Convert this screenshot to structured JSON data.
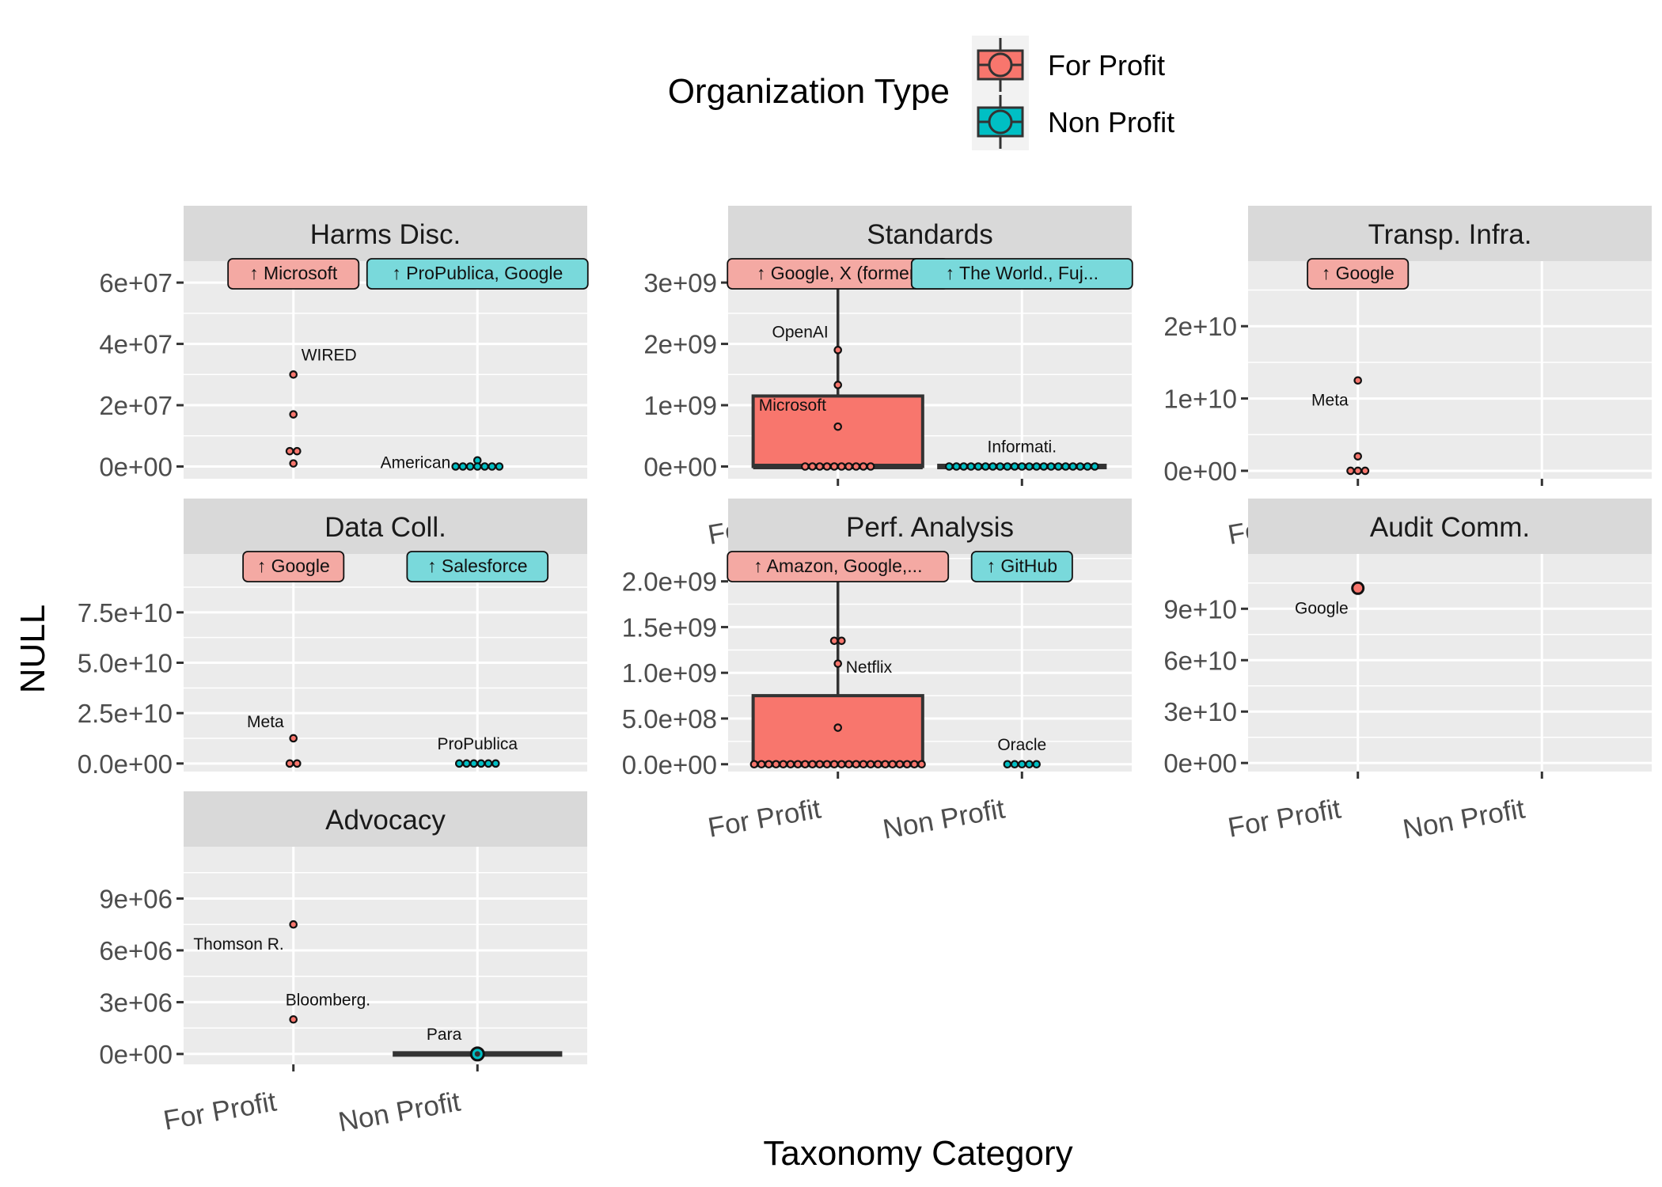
{
  "chart_data": {
    "type": "box",
    "ylabel": "NULL",
    "xlabel": "Taxonomy Category",
    "legend": {
      "title": "Organization Type",
      "position": "top",
      "entries": [
        {
          "name": "For Profit",
          "color": "#F8766D"
        },
        {
          "name": "Non Profit",
          "color": "#00BFC4"
        }
      ]
    },
    "categories": [
      "For Profit",
      "Non Profit"
    ],
    "panels": [
      {
        "title": "Harms Disc.",
        "ticks": [
          0,
          20000000,
          40000000,
          60000000
        ],
        "tick_labels": [
          "0e+00",
          "2e+07",
          "4e+07",
          "6e+07"
        ],
        "ylim": [
          -4000000,
          67000000
        ],
        "show_x_labels": false,
        "groups": [
          {
            "category": "For Profit",
            "box": null,
            "points": [
              30000000,
              17000000,
              5000000,
              5000000,
              1000000
            ],
            "outlier_label": "↑ Microsoft",
            "annotations": [
              {
                "text": "WIRED",
                "y": 30000000
              }
            ]
          },
          {
            "category": "Non Profit",
            "box": null,
            "points": [
              0,
              0,
              0,
              0,
              0,
              0,
              2000000,
              0
            ],
            "outlier_label": "↑ ProPublica, Google",
            "annotations": [
              {
                "text": "American",
                "y": 0
              }
            ]
          }
        ]
      },
      {
        "title": "Standards",
        "ticks": [
          0,
          1000000000,
          2000000000,
          3000000000
        ],
        "tick_labels": [
          "0e+00",
          "1e+09",
          "2e+09",
          "3e+09"
        ],
        "ylim": [
          -200000000,
          3350000000
        ],
        "show_x_labels": true,
        "groups": [
          {
            "category": "For Profit",
            "box": [
              0,
              0,
              0,
              1150000000,
              3300000000
            ],
            "points": [
              0,
              0,
              0,
              0,
              0,
              0,
              0,
              0,
              0,
              0,
              650000000,
              1330000000,
              1900000000
            ],
            "outlier_label": "↑ Google, X (former.",
            "annotations": [
              {
                "text": "OpenAI",
                "y": 1900000000
              },
              {
                "text": "Microsoft",
                "y": 1000000000
              }
            ]
          },
          {
            "category": "Non Profit",
            "box": [
              0,
              0,
              0,
              0,
              0
            ],
            "points": [
              0,
              0,
              0,
              0,
              0,
              0,
              0,
              0,
              0,
              0,
              0,
              0,
              0,
              0,
              0,
              0,
              0,
              0,
              0,
              0,
              0
            ],
            "outlier_label": "↑ The World., Fuj...",
            "annotations": [
              {
                "text": "Informati.",
                "y": 0
              }
            ]
          }
        ]
      },
      {
        "title": "Transp. Infra.",
        "ticks": [
          0,
          10000000000,
          20000000000
        ],
        "tick_labels": [
          "0e+00",
          "1e+10",
          "2e+10"
        ],
        "ylim": [
          -1100000000,
          29000000000
        ],
        "show_x_labels": true,
        "groups": [
          {
            "category": "For Profit",
            "box": null,
            "points": [
              12500000000,
              2000000000,
              0,
              0,
              0
            ],
            "outlier_label": "↑ Google",
            "annotations": [
              {
                "text": "Meta",
                "y": 12500000000
              }
            ]
          },
          {
            "category": "Non Profit",
            "box": null,
            "points": [],
            "outlier_label": "",
            "annotations": []
          }
        ]
      },
      {
        "title": "Data Coll.",
        "ticks": [
          0,
          25000000000,
          50000000000,
          75000000000
        ],
        "tick_labels": [
          "0.0e+00",
          "2.5e+10",
          "5.0e+10",
          "7.5e+10"
        ],
        "ylim": [
          -4000000000,
          104000000000
        ],
        "show_x_labels": false,
        "groups": [
          {
            "category": "For Profit",
            "box": null,
            "points": [
              12500000000,
              0,
              0
            ],
            "outlier_label": "↑ Google",
            "annotations": [
              {
                "text": "Meta",
                "y": 12500000000
              }
            ]
          },
          {
            "category": "Non Profit",
            "box": null,
            "points": [
              0,
              0,
              0,
              0,
              0,
              0
            ],
            "outlier_label": "↑ Salesforce",
            "annotations": [
              {
                "text": "ProPublica",
                "y": 0
              }
            ]
          }
        ]
      },
      {
        "title": "Perf. Analysis",
        "ticks": [
          0,
          500000000,
          1000000000,
          1500000000,
          2000000000
        ],
        "tick_labels": [
          "0.0e+00",
          "5.0e+08",
          "1.0e+09",
          "1.5e+09",
          "2.0e+09"
        ],
        "ylim": [
          -80000000,
          2300000000
        ],
        "show_x_labels": true,
        "groups": [
          {
            "category": "For Profit",
            "box": [
              0,
              0,
              0,
              750000000,
              2000000000
            ],
            "points": [
              0,
              0,
              0,
              0,
              0,
              0,
              0,
              0,
              0,
              0,
              0,
              0,
              0,
              0,
              0,
              0,
              0,
              0,
              0,
              0,
              0,
              0,
              0,
              0,
              400000000,
              1100000000,
              1350000000,
              1350000000
            ],
            "outlier_label": "↑ Amazon, Google,...",
            "annotations": [
              {
                "text": "Netflix",
                "y": 900000000
              }
            ]
          },
          {
            "category": "Non Profit",
            "box": null,
            "points": [
              0,
              0,
              0,
              0,
              0
            ],
            "outlier_label": "↑ GitHub",
            "annotations": [
              {
                "text": "Oracle",
                "y": 0
              }
            ]
          }
        ]
      },
      {
        "title": "Audit Comm.",
        "ticks": [
          0,
          30000000000,
          60000000000,
          90000000000
        ],
        "tick_labels": [
          "0e+00",
          "3e+10",
          "6e+10",
          "9e+10"
        ],
        "ylim": [
          -5000000000,
          122000000000
        ],
        "show_x_labels": true,
        "groups": [
          {
            "category": "For Profit",
            "box": null,
            "points": [
              102000000000
            ],
            "outlier_label": "",
            "annotations": [
              {
                "text": "Google",
                "y": 102000000000
              }
            ]
          },
          {
            "category": "Non Profit",
            "box": null,
            "points": [],
            "outlier_label": "",
            "annotations": []
          }
        ]
      },
      {
        "title": "Advocacy",
        "ticks": [
          0,
          3000000,
          6000000,
          9000000
        ],
        "tick_labels": [
          "0e+00",
          "3e+06",
          "6e+06",
          "9e+06"
        ],
        "ylim": [
          -600000,
          12000000
        ],
        "show_x_labels": true,
        "groups": [
          {
            "category": "For Profit",
            "box": null,
            "points": [
              7500000,
              2000000
            ],
            "outlier_label": "",
            "annotations": [
              {
                "text": "Thomson R.",
                "y": 7500000
              },
              {
                "text": "Bloomberg.",
                "y": 2000000
              }
            ]
          },
          {
            "category": "Non Profit",
            "box": [
              0,
              0,
              0,
              0,
              0
            ],
            "points": [
              0
            ],
            "outlier_label": "",
            "annotations": [
              {
                "text": "Para",
                "y": 0
              }
            ]
          }
        ]
      }
    ]
  }
}
